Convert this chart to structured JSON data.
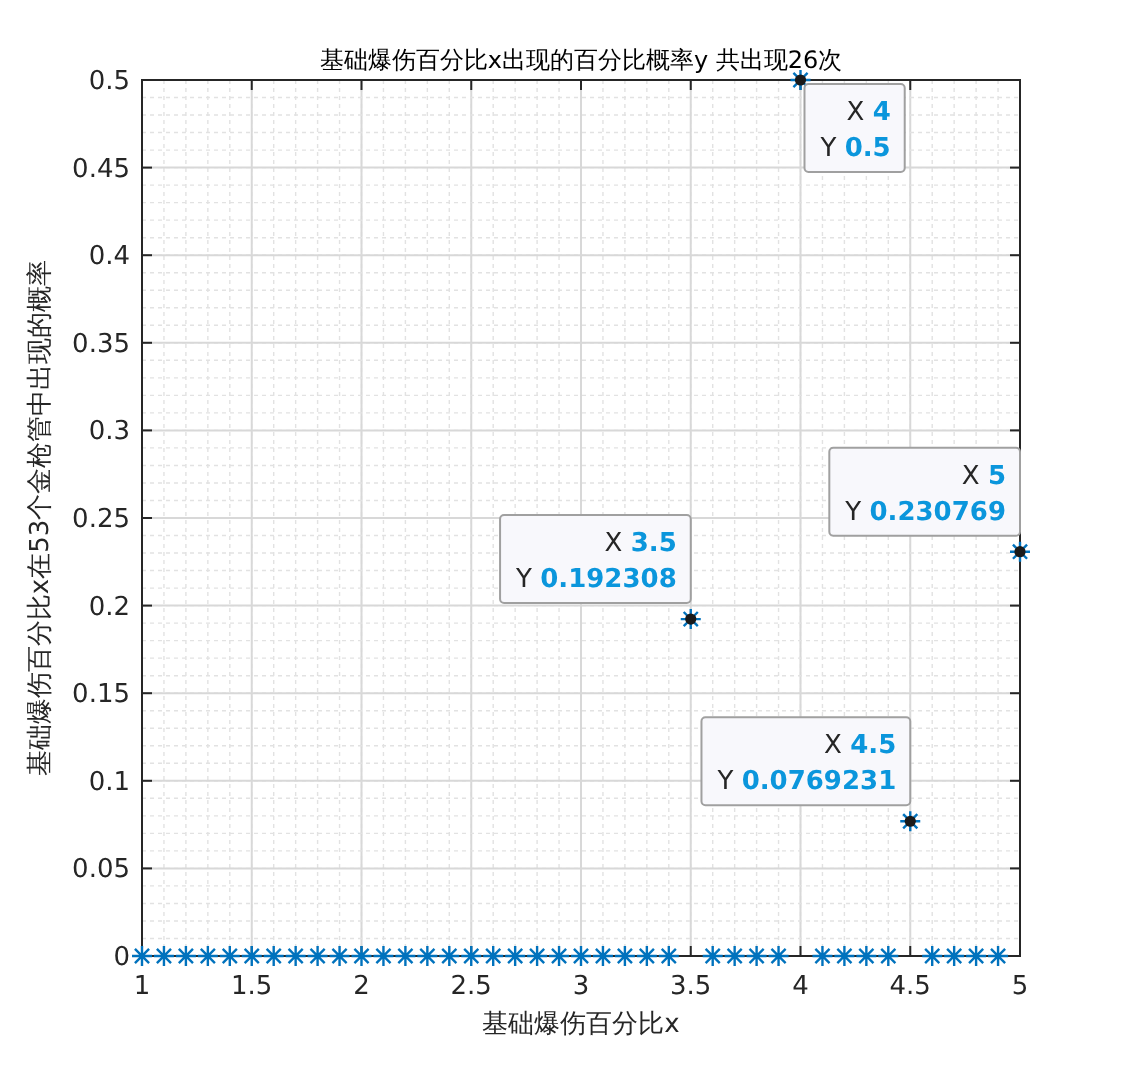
{
  "chart_data": {
    "type": "scatter",
    "title": "基础爆伤百分比x出现的百分比概率y   共出现26次",
    "xlabel": "基础爆伤百分比x",
    "ylabel": "基础爆伤百分比x在53个金枪管中出现的概率",
    "x": [
      1,
      1.1,
      1.2,
      1.3,
      1.4,
      1.5,
      1.6,
      1.7,
      1.8,
      1.9,
      2,
      2.1,
      2.2,
      2.3,
      2.4,
      2.5,
      2.6,
      2.7,
      2.8,
      2.9,
      3,
      3.1,
      3.2,
      3.3,
      3.4,
      3.5,
      3.6,
      3.7,
      3.8,
      3.9,
      4,
      4.1,
      4.2,
      4.3,
      4.4,
      4.5,
      4.6,
      4.7,
      4.8,
      4.9,
      5
    ],
    "series": [
      {
        "color": "#0072bd",
        "values": [
          0,
          0,
          0,
          0,
          0,
          0,
          0,
          0,
          0,
          0,
          0,
          0,
          0,
          0,
          0,
          0,
          0,
          0,
          0,
          0,
          0,
          0,
          0,
          0,
          0,
          0.192308,
          0,
          0,
          0,
          0,
          0.5,
          0,
          0,
          0,
          0,
          0.0769231,
          0,
          0,
          0,
          0,
          0.230769
        ]
      }
    ],
    "marker": "cross",
    "grid": true,
    "xlim": [
      1,
      5
    ],
    "xticks": [
      1,
      1.5,
      2,
      2.5,
      3,
      3.5,
      4,
      4.5,
      5
    ],
    "ylim": [
      0,
      0.5
    ],
    "yticks": [
      0,
      0.05,
      0.1,
      0.15,
      0.2,
      0.25,
      0.3,
      0.35,
      0.4,
      0.45,
      0.5
    ],
    "annotations": [
      {
        "text": "X 3.5",
        "x": 3.5,
        "y": 0.192308
      },
      {
        "text": "Y 0.192308",
        "x": 3.5,
        "y": 0.192308
      },
      {
        "text": "X 4",
        "x": 4,
        "y": 0.5
      },
      {
        "text": "Y 0.5",
        "x": 4,
        "y": 0.5
      },
      {
        "text": "X 4.5",
        "x": 4.5,
        "y": 0.0769231
      },
      {
        "text": "Y 0.0769231",
        "x": 4.5,
        "y": 0.0769231
      },
      {
        "text": "X 5",
        "x": 5,
        "y": 0.230769
      },
      {
        "text": "Y 0.230769",
        "x": 5,
        "y": 0.230769
      }
    ]
  }
}
